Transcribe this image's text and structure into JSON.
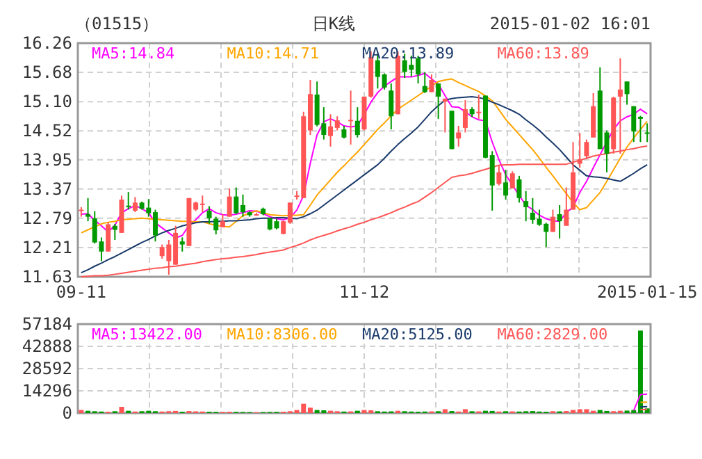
{
  "chart_data": [
    {
      "type": "candlestick",
      "title": "（01515）",
      "subtitle": "日K线",
      "annotations": [
        "2015-01-02 16:01"
      ],
      "categories": [
        "09-11",
        null,
        null,
        null,
        null,
        null,
        null,
        null,
        null,
        null,
        null,
        null,
        null,
        null,
        null,
        null,
        null,
        null,
        null,
        null,
        null,
        null,
        null,
        null,
        null,
        null,
        null,
        null,
        null,
        null,
        null,
        null,
        null,
        null,
        null,
        null,
        null,
        null,
        null,
        null,
        null,
        null,
        "11-12",
        null,
        null,
        null,
        null,
        null,
        null,
        null,
        null,
        null,
        null,
        null,
        null,
        null,
        null,
        null,
        null,
        null,
        null,
        null,
        null,
        null,
        null,
        null,
        null,
        null,
        null,
        null,
        null,
        null,
        null,
        null,
        null,
        null,
        null,
        null,
        null,
        null,
        null,
        null,
        null,
        null,
        "2015-01-15"
      ],
      "ohlc": [
        [
          12.95,
          13.01,
          12.82,
          12.96
        ],
        [
          12.87,
          13.19,
          12.73,
          12.82
        ],
        [
          12.79,
          12.93,
          12.29,
          12.31
        ],
        [
          12.33,
          12.41,
          11.94,
          12.13
        ],
        [
          12.13,
          12.71,
          12.13,
          12.67
        ],
        [
          12.64,
          12.68,
          12.36,
          12.56
        ],
        [
          12.5,
          13.24,
          12.5,
          13.16
        ],
        [
          13.04,
          13.31,
          12.96,
          13.02
        ],
        [
          12.94,
          13.21,
          12.91,
          13.1
        ],
        [
          13.1,
          13.12,
          12.96,
          12.98
        ],
        [
          13.0,
          13.17,
          12.82,
          12.89
        ],
        [
          12.91,
          12.96,
          12.33,
          12.45
        ],
        [
          12.04,
          12.27,
          11.99,
          12.22
        ],
        [
          11.94,
          12.36,
          11.67,
          12.27
        ],
        [
          11.87,
          12.64,
          11.87,
          12.5
        ],
        [
          12.33,
          12.41,
          12.13,
          12.27
        ],
        [
          12.24,
          13.19,
          12.24,
          13.19
        ],
        [
          12.96,
          13.12,
          12.93,
          13.1
        ],
        [
          13.07,
          13.24,
          12.91,
          13.08
        ],
        [
          12.94,
          13.03,
          12.68,
          12.79
        ],
        [
          12.78,
          12.82,
          12.47,
          12.55
        ],
        [
          12.61,
          12.87,
          12.61,
          12.73
        ],
        [
          12.82,
          13.38,
          12.82,
          13.22
        ],
        [
          13.22,
          13.4,
          12.87,
          12.89
        ],
        [
          13.05,
          13.26,
          12.82,
          12.91
        ],
        [
          12.91,
          12.93,
          12.82,
          12.85
        ],
        [
          12.86,
          12.9,
          12.84,
          12.87
        ],
        [
          12.98,
          13.0,
          12.85,
          12.87
        ],
        [
          12.79,
          12.8,
          12.55,
          12.57
        ],
        [
          12.73,
          12.78,
          12.57,
          12.59
        ],
        [
          12.48,
          12.74,
          12.47,
          12.73
        ],
        [
          12.7,
          13.1,
          12.68,
          13.1
        ],
        [
          13.22,
          13.33,
          13.16,
          13.24
        ],
        [
          13.19,
          14.9,
          13.19,
          14.81
        ],
        [
          14.53,
          15.53,
          14.44,
          15.25
        ],
        [
          15.24,
          15.5,
          14.61,
          14.64
        ],
        [
          14.67,
          14.99,
          14.35,
          14.44
        ],
        [
          14.42,
          14.85,
          14.21,
          14.61
        ],
        [
          14.58,
          14.81,
          14.53,
          14.73
        ],
        [
          14.55,
          14.62,
          14.37,
          14.39
        ],
        [
          14.72,
          15.32,
          14.25,
          14.74
        ],
        [
          14.72,
          14.99,
          14.39,
          14.44
        ],
        [
          14.55,
          15.2,
          14.53,
          15.2
        ],
        [
          15.2,
          16.1,
          15.18,
          15.98
        ],
        [
          15.92,
          16.05,
          15.36,
          15.59
        ],
        [
          15.64,
          15.66,
          15.34,
          15.38
        ],
        [
          15.32,
          15.46,
          14.55,
          14.81
        ],
        [
          14.85,
          16.1,
          14.85,
          16.01
        ],
        [
          15.92,
          16.05,
          15.57,
          15.69
        ],
        [
          15.83,
          16.01,
          15.6,
          15.73
        ],
        [
          15.96,
          16.01,
          15.46,
          15.64
        ],
        [
          15.41,
          15.69,
          15.27,
          15.29
        ],
        [
          15.29,
          15.64,
          15.29,
          15.53
        ],
        [
          15.46,
          15.46,
          14.76,
          15.2
        ],
        [
          15.1,
          15.16,
          14.49,
          15.16
        ],
        [
          14.92,
          14.92,
          14.16,
          14.16
        ],
        [
          14.37,
          14.62,
          14.21,
          14.49
        ],
        [
          14.58,
          15.13,
          14.49,
          14.95
        ],
        [
          14.95,
          14.99,
          14.8,
          14.85
        ],
        [
          14.88,
          15.24,
          14.76,
          14.9
        ],
        [
          15.22,
          15.22,
          13.98,
          13.99
        ],
        [
          14.04,
          14.12,
          12.94,
          13.44
        ],
        [
          13.47,
          13.84,
          13.44,
          13.7
        ],
        [
          13.5,
          13.75,
          13.16,
          13.24
        ],
        [
          13.38,
          13.72,
          13.38,
          13.68
        ],
        [
          13.56,
          13.63,
          13.1,
          13.19
        ],
        [
          13.13,
          13.33,
          12.73,
          13.01
        ],
        [
          12.9,
          13.19,
          12.68,
          12.76
        ],
        [
          12.78,
          12.96,
          12.64,
          12.66
        ],
        [
          12.68,
          12.7,
          12.22,
          12.52
        ],
        [
          12.52,
          12.96,
          12.52,
          12.82
        ],
        [
          12.87,
          13.05,
          12.39,
          12.73
        ],
        [
          12.64,
          13.4,
          12.64,
          12.96
        ],
        [
          12.96,
          14.3,
          12.96,
          13.7
        ],
        [
          13.87,
          14.48,
          13.79,
          13.96
        ],
        [
          14.02,
          14.35,
          13.96,
          14.3
        ],
        [
          14.39,
          15.27,
          14.39,
          15.01
        ],
        [
          15.32,
          15.78,
          14.16,
          14.16
        ],
        [
          14.49,
          14.53,
          13.7,
          14.07
        ],
        [
          14.16,
          15.2,
          14.07,
          15.18
        ],
        [
          15.2,
          15.96,
          14.07,
          15.34
        ],
        [
          15.5,
          15.5,
          15.04,
          15.25
        ],
        [
          15.01,
          15.01,
          14.3,
          14.51
        ],
        [
          14.8,
          14.82,
          14.3,
          14.76
        ],
        [
          14.49,
          14.67,
          14.3,
          14.48
        ]
      ],
      "colors": [
        "#ff5555",
        "#009900",
        "#009900",
        "#009900",
        "#ff5555",
        "#009900",
        "#ff5555",
        "#009900",
        "#ff5555",
        "#009900",
        "#009900",
        "#009900",
        "#ff5555",
        "#ff5555",
        "#ff5555",
        "#009900",
        "#ff5555",
        "#ff5555",
        "#ff5555",
        "#009900",
        "#009900",
        "#ff5555",
        "#ff5555",
        "#009900",
        "#009900",
        "#009900",
        "#ff5555",
        "#009900",
        "#009900",
        "#009900",
        "#ff5555",
        "#ff5555",
        "#ff5555",
        "#ff5555",
        "#ff5555",
        "#009900",
        "#009900",
        "#ff5555",
        "#ff5555",
        "#009900",
        "#ff5555",
        "#009900",
        "#ff5555",
        "#ff5555",
        "#009900",
        "#009900",
        "#009900",
        "#ff5555",
        "#009900",
        "#009900",
        "#009900",
        "#009900",
        "#ff5555",
        "#009900",
        "#ff5555",
        "#009900",
        "#ff5555",
        "#ff5555",
        "#009900",
        "#ff5555",
        "#009900",
        "#009900",
        "#ff5555",
        "#009900",
        "#ff5555",
        "#009900",
        "#009900",
        "#009900",
        "#009900",
        "#009900",
        "#ff5555",
        "#009900",
        "#ff5555",
        "#ff5555",
        "#ff5555",
        "#ff5555",
        "#ff5555",
        "#009900",
        "#009900",
        "#ff5555",
        "#ff5555",
        "#009900",
        "#009900",
        "#009900",
        "#009900"
      ],
      "series": [
        {
          "type": "line",
          "name": "MA5:14.84",
          "color": "#ff00ff",
          "values": [
            12.87,
            12.88,
            12.75,
            12.64,
            12.52,
            12.65,
            12.9,
            12.98,
            13.04,
            12.98,
            12.9,
            12.7,
            12.6,
            12.5,
            12.4,
            12.45,
            12.65,
            12.76,
            12.9,
            12.98,
            12.9,
            12.86,
            12.85,
            12.87,
            12.9,
            12.94,
            12.93,
            12.88,
            12.82,
            12.78,
            12.76,
            12.8,
            12.95,
            13.24,
            13.88,
            14.44,
            14.7,
            14.76,
            14.7,
            14.62,
            14.6,
            14.62,
            14.85,
            15.09,
            15.28,
            15.41,
            15.5,
            15.59,
            15.59,
            15.59,
            15.62,
            15.66,
            15.55,
            15.45,
            15.22,
            15.0,
            14.99,
            14.9,
            14.8,
            14.74,
            14.72,
            14.3,
            13.95,
            13.65,
            13.45,
            13.24,
            13.05,
            12.96,
            12.85,
            12.78,
            12.74,
            12.73,
            12.9,
            13.01,
            13.3,
            13.52,
            13.79,
            14.05,
            14.3,
            14.55,
            14.72,
            14.8,
            14.85,
            14.95,
            14.86
          ]
        },
        {
          "type": "line",
          "name": "MA10:14.71",
          "color": "#ffa500",
          "values": [
            12.5,
            12.56,
            12.62,
            12.68,
            12.71,
            12.73,
            12.76,
            12.77,
            12.78,
            12.79,
            12.78,
            12.77,
            12.76,
            12.75,
            12.74,
            12.73,
            12.73,
            12.72,
            12.72,
            12.68,
            12.65,
            12.63,
            12.62,
            12.73,
            12.84,
            12.89,
            12.94,
            12.9,
            12.86,
            12.85,
            12.84,
            12.85,
            12.85,
            12.86,
            13.05,
            13.25,
            13.4,
            13.55,
            13.7,
            13.83,
            13.97,
            14.1,
            14.25,
            14.4,
            14.55,
            14.68,
            14.82,
            14.95,
            15.04,
            15.13,
            15.22,
            15.31,
            15.41,
            15.5,
            15.53,
            15.55,
            15.48,
            15.42,
            15.36,
            15.3,
            15.21,
            15.12,
            14.94,
            14.75,
            14.6,
            14.45,
            14.3,
            14.15,
            13.98,
            13.8,
            13.63,
            13.45,
            13.28,
            13.1,
            12.96,
            13.0,
            13.15,
            13.3,
            13.52,
            13.75,
            13.98,
            14.2,
            14.38,
            14.55,
            14.71
          ]
        },
        {
          "type": "line",
          "name": "MA20:13.89",
          "color": "#1a3a6b",
          "values": [
            11.71,
            11.77,
            11.84,
            11.9,
            11.97,
            12.03,
            12.1,
            12.17,
            12.24,
            12.31,
            12.37,
            12.44,
            12.5,
            12.55,
            12.59,
            12.64,
            12.67,
            12.7,
            12.72,
            12.72,
            12.73,
            12.73,
            12.74,
            12.74,
            12.75,
            12.76,
            12.78,
            12.79,
            12.79,
            12.8,
            12.8,
            12.79,
            12.78,
            12.82,
            12.88,
            12.95,
            13.05,
            13.15,
            13.25,
            13.35,
            13.45,
            13.55,
            13.65,
            13.75,
            13.85,
            13.98,
            14.12,
            14.25,
            14.37,
            14.48,
            14.6,
            14.75,
            14.9,
            15.02,
            15.13,
            15.16,
            15.18,
            15.19,
            15.2,
            15.18,
            15.15,
            15.09,
            15.04,
            14.98,
            14.92,
            14.85,
            14.74,
            14.64,
            14.53,
            14.4,
            14.28,
            14.15,
            14.0,
            13.85,
            13.74,
            13.63,
            13.61,
            13.6,
            13.58,
            13.55,
            13.52,
            13.6,
            13.68,
            13.77,
            13.85
          ]
        },
        {
          "type": "line",
          "name": "MA60:13.89",
          "color": "#ff5555",
          "values": [
            11.63,
            11.64,
            11.65,
            11.65,
            11.66,
            11.68,
            11.7,
            11.72,
            11.74,
            11.76,
            11.78,
            11.8,
            11.81,
            11.83,
            11.84,
            11.86,
            11.88,
            11.9,
            11.93,
            11.95,
            11.97,
            11.99,
            12.0,
            12.02,
            12.03,
            12.05,
            12.07,
            12.1,
            12.12,
            12.14,
            12.16,
            12.21,
            12.25,
            12.3,
            12.36,
            12.41,
            12.45,
            12.49,
            12.54,
            12.58,
            12.62,
            12.67,
            12.71,
            12.76,
            12.8,
            12.85,
            12.9,
            12.96,
            13.01,
            13.07,
            13.12,
            13.21,
            13.3,
            13.4,
            13.5,
            13.6,
            13.63,
            13.65,
            13.68,
            13.72,
            13.76,
            13.8,
            13.84,
            13.85,
            13.85,
            13.86,
            13.86,
            13.86,
            13.86,
            13.86,
            13.86,
            13.86,
            13.86,
            13.9,
            13.94,
            13.98,
            14.02,
            14.05,
            14.07,
            14.1,
            14.12,
            14.15,
            14.17,
            14.2,
            14.22
          ]
        }
      ],
      "ylim": [
        11.63,
        16.26
      ],
      "yticks": [
        11.63,
        12.21,
        12.79,
        13.37,
        13.95,
        14.52,
        {
          "value": 15.1,
          "label": "15.10"
        },
        15.68,
        16.26
      ],
      "grid": true,
      "legend": "top"
    },
    {
      "type": "bar",
      "categories": [
        null,
        null,
        null,
        null,
        null,
        null,
        null,
        null,
        null,
        null,
        null,
        null,
        null,
        null,
        null,
        null,
        null,
        null,
        null,
        null,
        null,
        null,
        null,
        null,
        null,
        null,
        null,
        null,
        null,
        null,
        null,
        null,
        null,
        null,
        null,
        null,
        null,
        null,
        null,
        null,
        null,
        null,
        null,
        null,
        null,
        null,
        null,
        null,
        null,
        null,
        null,
        null,
        null,
        null,
        null,
        null,
        null,
        null,
        null,
        null,
        null,
        null,
        null,
        null,
        null,
        null,
        null,
        null,
        null,
        null,
        null,
        null,
        null,
        null,
        null,
        null,
        null,
        null,
        null,
        null,
        null,
        null,
        null,
        null,
        null
      ],
      "series": [
        {
          "type": "bar",
          "values": [
            2000,
            1500,
            1200,
            1000,
            900,
            1200,
            4000,
            1500,
            1000,
            1200,
            1500,
            1200,
            1000,
            1200,
            1400,
            900,
            1300,
            1100,
            1000,
            900,
            800,
            700,
            900,
            800,
            700,
            600,
            500,
            600,
            700,
            800,
            900,
            1200,
            2000,
            6000,
            3500,
            2000,
            1800,
            1500,
            1200,
            1000,
            1100,
            1500,
            2000,
            1800,
            1200,
            1000,
            1100,
            1500,
            1200,
            1000,
            900,
            1000,
            1100,
            1200,
            2500,
            1300,
            1000,
            2500,
            1200,
            1100,
            1500,
            1400,
            1000,
            1200,
            1100,
            1000,
            1200,
            1300,
            1000,
            900,
            1200,
            1100,
            1300,
            2000,
            2500,
            2500,
            1500,
            2000,
            1400,
            1200,
            1500,
            1600,
            2000,
            53000,
            3000
          ],
          "colors": [
            "#ff5555",
            "#009900",
            "#009900",
            "#009900",
            "#ff5555",
            "#009900",
            "#ff5555",
            "#009900",
            "#ff5555",
            "#009900",
            "#009900",
            "#009900",
            "#ff5555",
            "#ff5555",
            "#ff5555",
            "#009900",
            "#ff5555",
            "#ff5555",
            "#ff5555",
            "#009900",
            "#009900",
            "#ff5555",
            "#ff5555",
            "#009900",
            "#009900",
            "#009900",
            "#ff5555",
            "#009900",
            "#009900",
            "#009900",
            "#ff5555",
            "#ff5555",
            "#ff5555",
            "#ff5555",
            "#ff5555",
            "#009900",
            "#009900",
            "#ff5555",
            "#ff5555",
            "#009900",
            "#ff5555",
            "#009900",
            "#ff5555",
            "#ff5555",
            "#009900",
            "#009900",
            "#009900",
            "#ff5555",
            "#009900",
            "#009900",
            "#009900",
            "#009900",
            "#ff5555",
            "#009900",
            "#ff5555",
            "#009900",
            "#ff5555",
            "#ff5555",
            "#009900",
            "#ff5555",
            "#009900",
            "#009900",
            "#ff5555",
            "#009900",
            "#ff5555",
            "#009900",
            "#009900",
            "#009900",
            "#009900",
            "#009900",
            "#ff5555",
            "#009900",
            "#ff5555",
            "#ff5555",
            "#ff5555",
            "#ff5555",
            "#ff5555",
            "#009900",
            "#009900",
            "#ff5555",
            "#ff5555",
            "#009900",
            "#009900",
            "#009900",
            "#009900"
          ]
        },
        {
          "type": "line",
          "name": "MA5:13422.00",
          "color": "#ff00ff",
          "values": [
            null,
            null,
            null,
            null,
            null,
            null,
            null,
            null,
            null,
            null,
            null,
            null,
            null,
            null,
            null,
            null,
            null,
            null,
            null,
            null,
            null,
            null,
            null,
            null,
            null,
            null,
            null,
            null,
            null,
            null,
            null,
            null,
            null,
            null,
            null,
            null,
            null,
            null,
            null,
            null,
            null,
            null,
            null,
            null,
            null,
            null,
            null,
            null,
            null,
            null,
            null,
            null,
            null,
            null,
            null,
            null,
            null,
            null,
            null,
            null,
            null,
            null,
            null,
            null,
            null,
            null,
            null,
            null,
            null,
            null,
            null,
            null,
            null,
            null,
            null,
            null,
            null,
            null,
            null,
            null,
            null,
            null,
            1700,
            11900,
            12200
          ]
        },
        {
          "type": "line",
          "name": "MA10:8306.00",
          "color": "#ffa500",
          "values": [
            null,
            null,
            null,
            null,
            null,
            null,
            null,
            null,
            null,
            null,
            null,
            null,
            null,
            null,
            null,
            null,
            null,
            null,
            null,
            null,
            null,
            null,
            null,
            null,
            null,
            null,
            null,
            null,
            null,
            null,
            null,
            null,
            null,
            null,
            null,
            null,
            null,
            null,
            null,
            null,
            null,
            null,
            null,
            null,
            null,
            null,
            null,
            null,
            null,
            null,
            null,
            null,
            null,
            null,
            null,
            null,
            null,
            null,
            null,
            null,
            null,
            null,
            null,
            null,
            null,
            null,
            null,
            null,
            null,
            null,
            null,
            null,
            null,
            null,
            null,
            null,
            null,
            null,
            null,
            null,
            null,
            null,
            null,
            6900,
            7000
          ]
        },
        {
          "type": "line",
          "name": "MA20:5125.00",
          "color": "#1a3a6b",
          "values": [
            null,
            null,
            null,
            null,
            null,
            null,
            null,
            null,
            null,
            null,
            null,
            null,
            null,
            null,
            null,
            null,
            null,
            null,
            null,
            null,
            null,
            null,
            null,
            null,
            null,
            null,
            null,
            null,
            null,
            null,
            null,
            null,
            null,
            null,
            null,
            null,
            null,
            null,
            null,
            null,
            null,
            null,
            null,
            null,
            null,
            null,
            null,
            null,
            null,
            null,
            null,
            null,
            null,
            null,
            null,
            null,
            null,
            null,
            null,
            null,
            null,
            null,
            null,
            null,
            null,
            null,
            null,
            null,
            null,
            null,
            null,
            null,
            null,
            null,
            null,
            null,
            null,
            null,
            null,
            null,
            null,
            null,
            null,
            4000,
            4100
          ]
        },
        {
          "type": "line",
          "name": "MA60:2829.00",
          "color": "#ff5555",
          "values": [
            null,
            null,
            null,
            null,
            null,
            null,
            null,
            null,
            null,
            null,
            null,
            null,
            null,
            null,
            null,
            null,
            null,
            null,
            null,
            null,
            null,
            null,
            null,
            null,
            null,
            null,
            null,
            null,
            null,
            null,
            null,
            null,
            null,
            null,
            null,
            null,
            null,
            null,
            null,
            null,
            null,
            null,
            null,
            null,
            null,
            null,
            null,
            null,
            null,
            null,
            null,
            null,
            null,
            null,
            null,
            null,
            null,
            null,
            null,
            null,
            null,
            null,
            null,
            null,
            null,
            null,
            null,
            null,
            null,
            null,
            null,
            null,
            null,
            null,
            null,
            null,
            null,
            null,
            null,
            null,
            null,
            null,
            null,
            2200,
            2300
          ]
        }
      ],
      "ylim": [
        0,
        57184
      ],
      "yticks": [
        0,
        14296,
        28592,
        42888,
        57184
      ],
      "grid": true,
      "legend": "top",
      "tick_labels": "y"
    }
  ]
}
